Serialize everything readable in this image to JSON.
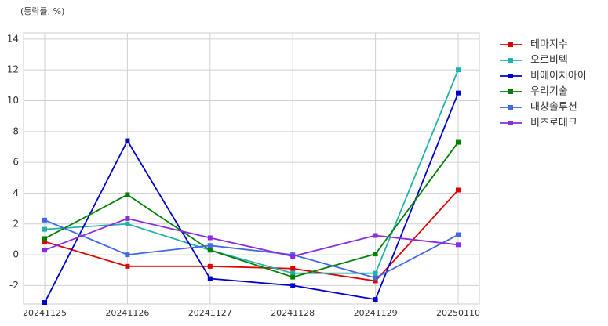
{
  "chart_data": {
    "type": "line",
    "title": "(등락률, %)",
    "categories": [
      "20241125",
      "20241126",
      "20241127",
      "20241128",
      "20241129",
      "20250110"
    ],
    "series": [
      {
        "name": "테마지수",
        "color": "#e00000",
        "values": [
          0.85,
          -0.75,
          -0.75,
          -0.9,
          -1.7,
          4.2
        ]
      },
      {
        "name": "오르비텍",
        "color": "#20b2aa",
        "values": [
          1.65,
          2.0,
          0.3,
          -1.2,
          -1.2,
          12.0
        ]
      },
      {
        "name": "비에이치아이",
        "color": "#0000cd",
        "values": [
          -3.1,
          7.4,
          -1.55,
          -2.0,
          -2.9,
          10.5
        ]
      },
      {
        "name": "우리기술",
        "color": "#008000",
        "values": [
          1.05,
          3.9,
          0.3,
          -1.45,
          0.05,
          7.3
        ]
      },
      {
        "name": "대창솔루션",
        "color": "#4169e1",
        "values": [
          2.25,
          0.0,
          0.6,
          0.0,
          -1.5,
          1.3
        ]
      },
      {
        "name": "비츠로테크",
        "color": "#8a2be2",
        "values": [
          0.3,
          2.35,
          1.1,
          -0.1,
          1.25,
          0.65
        ]
      }
    ],
    "ylim": [
      -3.2,
      14.4
    ],
    "yticks": [
      -2,
      0,
      2,
      4,
      6,
      8,
      10,
      12,
      14
    ],
    "grid": true,
    "legend": "outside-right"
  }
}
